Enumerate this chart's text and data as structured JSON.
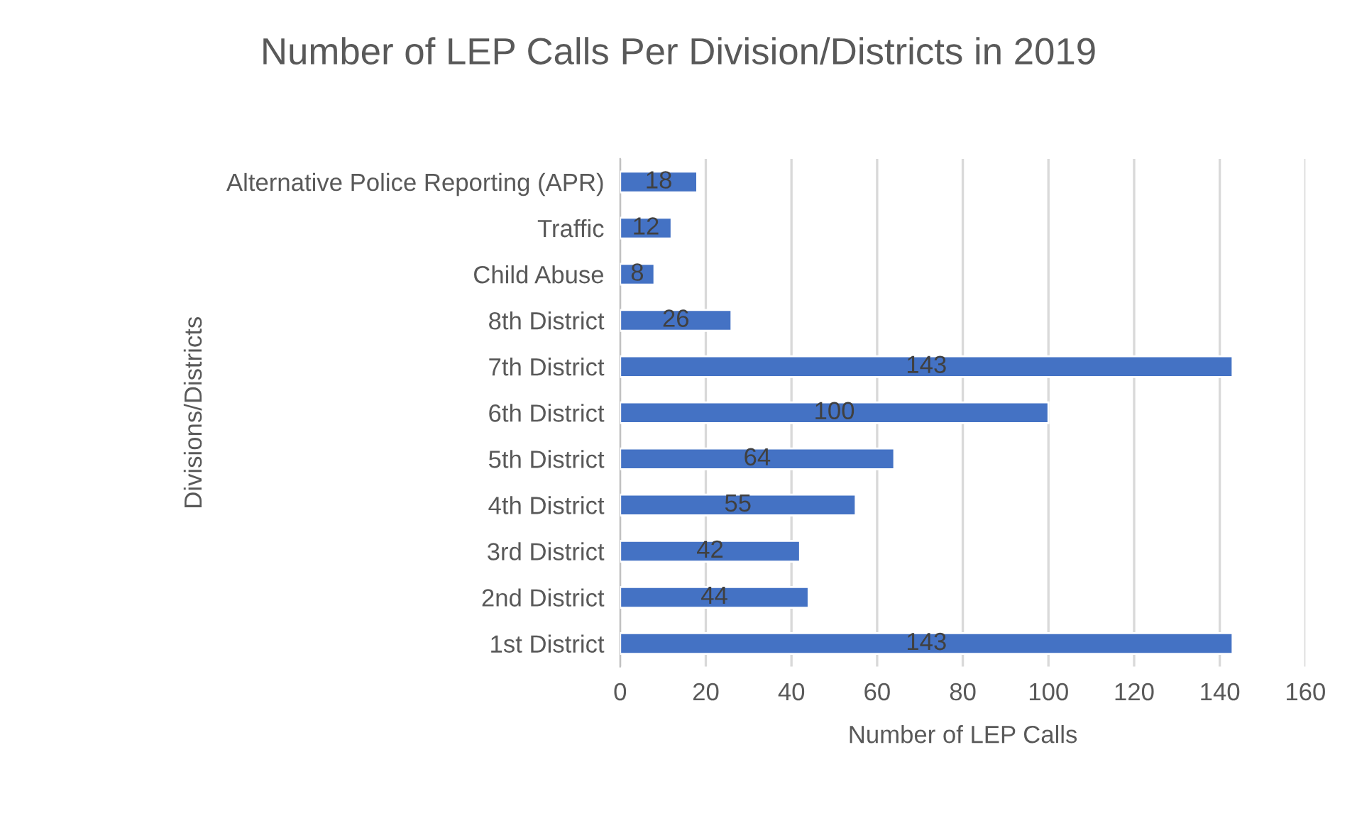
{
  "chart_data": {
    "type": "bar",
    "orientation": "horizontal",
    "title": "Number of LEP Calls Per Division/Districts in 2019",
    "xlabel": "Number of LEP Calls",
    "ylabel": "Divisions/Districts",
    "categories": [
      "Alternative Police Reporting (APR)",
      "Traffic",
      "Child Abuse",
      "8th District",
      "7th District",
      "6th District",
      "5th District",
      "4th District",
      "3rd District",
      "2nd District",
      "1st District"
    ],
    "values": [
      18,
      12,
      8,
      26,
      143,
      100,
      64,
      55,
      42,
      44,
      143
    ],
    "color": "#4472c4",
    "xlim": [
      0,
      160
    ],
    "xticks": [
      0,
      20,
      40,
      60,
      80,
      100,
      120,
      140,
      160
    ],
    "grid": "x",
    "data_labels": true,
    "legend": false
  }
}
